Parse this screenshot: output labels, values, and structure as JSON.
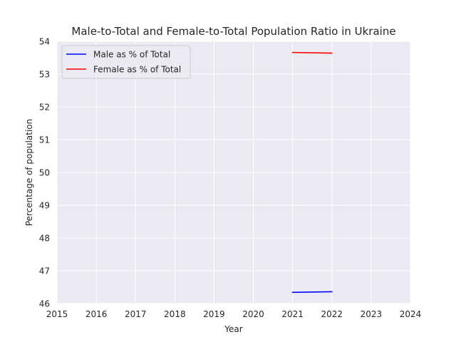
{
  "chart_data": {
    "type": "line",
    "title": "Male-to-Total and Female-to-Total Population Ratio in Ukraine",
    "xlabel": "Year",
    "ylabel": "Percentage of population",
    "xlim": [
      2015,
      2024
    ],
    "ylim": [
      46,
      54
    ],
    "x_ticks": [
      "2015",
      "2016",
      "2017",
      "2018",
      "2019",
      "2020",
      "2021",
      "2022",
      "2023",
      "2024"
    ],
    "y_ticks": [
      "46",
      "47",
      "48",
      "49",
      "50",
      "51",
      "52",
      "53",
      "54"
    ],
    "grid": true,
    "legend_position": "top-left",
    "series": [
      {
        "name": "Male as % of Total",
        "color": "#0000ff",
        "x": [
          2021,
          2022
        ],
        "y": [
          46.34,
          46.36
        ]
      },
      {
        "name": "Female as % of Total",
        "color": "#ff0000",
        "x": [
          2021,
          2022
        ],
        "y": [
          53.66,
          53.64
        ]
      }
    ]
  }
}
